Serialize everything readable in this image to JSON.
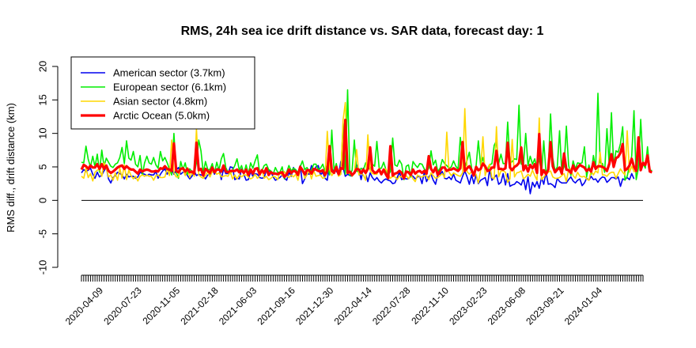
{
  "chart_data": {
    "type": "line",
    "title": "RMS, 24h sea ice drift distance vs. SAR data, forecast day: 1",
    "ylabel": "RMS diff., drift distance (km)",
    "xlabel": "",
    "ylim": [
      -10,
      20
    ],
    "yticks": [
      -10,
      -5,
      0,
      5,
      10,
      15,
      20
    ],
    "x_tick_labels": [
      "2020-04-09",
      "2020-07-23",
      "2020-11-05",
      "2021-02-18",
      "2021-06-03",
      "2021-09-16",
      "2021-12-30",
      "2022-04-14",
      "2022-07-28",
      "2022-11-10",
      "2023-02-23",
      "2023-06-08",
      "2023-09-21",
      "2024-01-04"
    ],
    "reference_line": 0,
    "grid": false,
    "legend_position": "top-left",
    "n_points": 250,
    "series": [
      {
        "name": "American sector (3.7km)",
        "color": "#0000ee",
        "width": 1.6,
        "values": [
          4.1,
          4.6,
          4.3,
          4.5,
          4.8,
          3.9,
          3.3,
          4.2,
          3.5,
          3.8,
          4.4,
          4.9,
          3.2,
          2.6,
          3.4,
          3.7,
          4.2,
          4.0,
          3.8,
          3.2,
          3.9,
          3.5,
          3.6,
          3.6,
          3.3,
          3.5,
          4.2,
          4.0,
          3.9,
          3.7,
          3.9,
          3.8,
          3.8,
          4.3,
          3.3,
          3.9,
          4.4,
          4.7,
          3.9,
          4.7,
          4.7,
          3.9,
          4.5,
          4.9,
          3.9,
          4.2,
          4.3,
          3.7,
          3.2,
          3.6,
          4.4,
          3.7,
          3.9,
          3.8,
          3.7,
          3.2,
          3.8,
          3.9,
          4.6,
          3.9,
          4.7,
          4.8,
          3.1,
          4.7,
          4.0,
          4.0,
          5.0,
          4.9,
          3.1,
          3.3,
          3.2,
          4.7,
          3.9,
          3.0,
          3.1,
          4.3,
          3.6,
          4.0,
          3.9,
          3.4,
          3.3,
          3.4,
          4.5,
          4.4,
          4.3,
          3.5,
          3.0,
          3.2,
          3.4,
          3.8,
          3.3,
          3.0,
          4.2,
          3.6,
          4.9,
          4.3,
          3.9,
          5.2,
          2.5,
          3.2,
          4.0,
          3.9,
          5.2,
          4.3,
          5.0,
          5.2,
          3.8,
          4.2,
          3.3,
          3.0,
          5.7,
          4.7,
          4.3,
          4.4,
          3.8,
          5.8,
          4.9,
          3.6,
          3.9,
          3.7,
          3.6,
          4.3,
          5.3,
          4.6,
          3.1,
          4.8,
          4.0,
          2.8,
          4.1,
          3.4,
          3.0,
          3.4,
          2.9,
          2.6,
          3.0,
          3.2,
          3.0,
          2.9,
          2.5,
          2.6,
          3.4,
          4.2,
          3.1,
          3.3,
          3.2,
          3.2,
          3.8,
          3.6,
          3.2,
          3.5,
          3.6,
          2.5,
          4.2,
          2.8,
          3.5,
          3.9,
          3.0,
          2.4,
          3.9,
          3.9,
          4.3,
          3.3,
          3.2,
          3.5,
          3.1,
          3.9,
          3.0,
          2.8,
          2.6,
          3.6,
          4.4,
          3.5,
          2.4,
          3.8,
          2.5,
          3.8,
          2.5,
          3.0,
          3.2,
          3.4,
          2.2,
          4.6,
          3.0,
          3.4,
          3.8,
          2.4,
          2.7,
          4.0,
          2.3,
          4.0,
          2.1,
          2.3,
          2.4,
          2.8,
          2.6,
          2.3,
          3.3,
          1.6,
          3.5,
          1.0,
          2.7,
          2.0,
          2.8,
          1.8,
          3.4,
          2.4,
          4.2,
          2.4,
          2.5,
          2.3,
          1.9,
          3.3,
          2.8,
          2.6,
          2.6,
          2.6,
          3.1,
          3.5,
          2.9,
          2.6,
          3.0,
          3.2,
          2.2,
          2.6,
          3.3,
          3.0,
          3.6,
          3.1,
          3.2,
          2.7,
          3.2,
          3.5,
          3.4,
          2.7,
          3.0,
          3.4,
          3.4,
          3.2,
          3.5,
          2.1,
          3.2,
          3.1,
          3.4,
          3.1,
          4.0,
          3.2
        ]
      },
      {
        "name": "European sector (6.1km)",
        "color": "#00ee00",
        "width": 1.6,
        "values": [
          5.7,
          5.6,
          8.1,
          6.1,
          5.0,
          6.6,
          5.0,
          6.9,
          4.2,
          7.5,
          5.1,
          6.3,
          5.7,
          5.1,
          4.9,
          5.4,
          5.6,
          6.4,
          7.9,
          5.5,
          8.9,
          6.3,
          6.0,
          7.3,
          5.4,
          5.0,
          6.7,
          3.8,
          5.6,
          6.6,
          5.6,
          5.4,
          6.4,
          5.3,
          4.8,
          7.3,
          5.9,
          6.4,
          5.6,
          4.7,
          3.8,
          4.6,
          4.2,
          3.3,
          5.8,
          4.6,
          5.6,
          3.9,
          4.7,
          4.3,
          4.0,
          5.6,
          5.0,
          7.4,
          4.1,
          5.8,
          4.6,
          4.6,
          5.5,
          4.1,
          5.7,
          4.5,
          6.2,
          7.0,
          4.9,
          4.2,
          4.0,
          4.5,
          5.2,
          6.2,
          4.5,
          5.2,
          4.0,
          5.3,
          3.9,
          5.6,
          4.8,
          5.9,
          6.8,
          4.1,
          4.4,
          5.2,
          5.4,
          4.6,
          4.4,
          3.9,
          4.9,
          4.2,
          4.2,
          5.0,
          3.2,
          4.2,
          5.2,
          4.4,
          4.8,
          4.6,
          4.1,
          5.0,
          5.9,
          4.6,
          4.9,
          4.3,
          4.5,
          5.4,
          5.4,
          4.6,
          4.8,
          5.4,
          4.3,
          5.2,
          3.8,
          4.8,
          4.4,
          5.5,
          3.9,
          3.9,
          3.9,
          3.9,
          3.8,
          3.7,
          4.5,
          6.2,
          4.4,
          4.2,
          4.8,
          4.5,
          5.6,
          5.0,
          4.6,
          5.4,
          5.1,
          4.8,
          4.8,
          4.8,
          5.7,
          4.6,
          3.8,
          4.3,
          4.2,
          5.3,
          5.1,
          6.0,
          5.4,
          3.1,
          5.1,
          5.3,
          3.5,
          5.8,
          5.3,
          4.9,
          5.5,
          5.4,
          4.7,
          4.3,
          4.8,
          6.5,
          5.3,
          6.0,
          4.3,
          4.8,
          6.1,
          5.5,
          5.2,
          4.8,
          5.0,
          5.9,
          5.1,
          4.7,
          6.1,
          6.5,
          4.9,
          6.0,
          5.8,
          4.8,
          3.7,
          5.2,
          4.4,
          5.2,
          6.4,
          4.7,
          4.5,
          5.3,
          5.5,
          6.3,
          8.9,
          5.5,
          6.9,
          5.5,
          5.5,
          5.4,
          5.5,
          5.8,
          6.2,
          6.1,
          8.3,
          5.4,
          5.4,
          6.6,
          5.2,
          6.6,
          5.4,
          6.2,
          4.6,
          6.3,
          3.9,
          4.3,
          4.0,
          4.6,
          4.9,
          6.3,
          4.4,
          5.0,
          5.4,
          4.2,
          5.0,
          5.5,
          5.3,
          3.7,
          5.9,
          4.7,
          5.6,
          5.5,
          5.6,
          5.2,
          3.5,
          5.3,
          3.9,
          6.7,
          4.8,
          5.9,
          5.6,
          5.5,
          4.2,
          4.6,
          5.4,
          4.7,
          5.1,
          7.4,
          7.2,
          8.5,
          6.3,
          3.0,
          3.6,
          5.2,
          6.6,
          4.8,
          3.1,
          4.9,
          3.4,
          5.5,
          4.8,
          8.0,
          4.4,
          4.5
        ],
        "peaks": {
          "41": 10.0,
          "52": 9.0,
          "111": 10.5,
          "118": 16.5,
          "116": 11.5,
          "121": 9.0,
          "131": 8.8,
          "138": 9.3,
          "155": 7.4,
          "168": 9.4,
          "172": 7.2,
          "176": 8.9,
          "183": 8.2,
          "189": 11.7,
          "194": 14.2,
          "197": 10.0,
          "205": 8.9,
          "208": 12.9,
          "212": 10.4,
          "215": 11.1,
          "223": 8.0,
          "229": 16.0,
          "233": 10.7,
          "235": 13.1,
          "240": 11.0,
          "245": 13.4,
          "248": 12.1
        }
      },
      {
        "name": "Asian sector (4.8km)",
        "color": "#ffd700",
        "width": 1.6,
        "values": [
          3.6,
          3.3,
          4.8,
          3.4,
          4.0,
          2.9,
          4.2,
          4.5,
          4.7,
          3.6,
          5.6,
          4.8,
          3.5,
          3.8,
          3.0,
          4.1,
          3.0,
          4.8,
          3.3,
          5.3,
          3.1,
          4.5,
          3.7,
          3.2,
          3.6,
          2.9,
          3.6,
          3.8,
          3.6,
          3.8,
          3.6,
          3.6,
          3.0,
          3.7,
          3.8,
          3.4,
          3.4,
          3.5,
          4.8,
          3.7,
          3.8,
          4.1,
          3.5,
          3.5,
          4.6,
          4.7,
          3.7,
          4.9,
          3.4,
          4.2,
          3.6,
          3.8,
          3.8,
          3.5,
          3.3,
          3.7,
          4.3,
          3.5,
          4.3,
          4.5,
          3.9,
          4.1,
          3.5,
          3.6,
          3.7,
          3.6,
          4.3,
          3.2,
          3.8,
          3.2,
          3.8,
          3.5,
          3.8,
          3.8,
          3.5,
          3.2,
          3.4,
          3.9,
          3.3,
          3.6,
          4.6,
          3.3,
          3.6,
          3.1,
          3.3,
          3.6,
          3.5,
          3.1,
          4.2,
          3.7,
          4.3,
          3.7,
          3.4,
          3.8,
          3.5,
          3.9,
          3.0,
          4.6,
          4.7,
          3.3,
          3.8,
          4.5,
          3.2,
          4.4,
          3.6,
          3.7,
          3.8,
          3.3,
          3.4,
          4.3,
          4.7,
          3.7,
          4.2,
          4.9,
          3.6,
          3.9,
          4.6,
          4.0,
          4.1,
          4.1,
          3.6,
          4.0,
          4.3,
          3.8,
          4.1,
          3.8,
          3.0,
          5.0,
          4.4,
          4.0,
          3.9,
          3.9,
          4.8,
          3.9,
          4.3,
          4.7,
          4.0,
          3.3,
          3.6,
          3.5,
          3.1,
          3.6,
          3.5,
          3.3,
          3.7,
          3.2,
          3.9,
          3.2,
          2.8,
          3.8,
          3.5,
          3.5,
          3.7,
          3.7,
          3.1,
          4.1,
          3.7,
          3.3,
          3.4,
          3.7,
          4.0,
          3.4,
          3.2,
          4.2,
          3.7,
          4.1,
          3.9,
          3.7,
          3.6,
          4.1,
          3.2,
          4.3,
          3.9,
          4.3,
          4.0,
          3.9,
          2.6,
          4.5,
          4.0,
          3.7,
          4.8,
          5.4,
          3.4,
          3.2,
          4.3,
          3.5,
          4.4,
          4.4,
          4.2,
          2.7,
          3.2,
          4.2,
          3.5,
          4.1,
          4.2,
          4.4,
          3.2,
          3.5,
          3.9,
          3.6,
          4.5,
          3.7,
          3.0,
          4.0,
          3.1,
          3.5,
          3.9,
          4.2,
          4.4,
          3.5,
          3.3,
          3.3,
          3.4,
          3.7,
          4.0,
          2.8,
          4.6,
          4.7,
          3.7,
          3.3,
          4.2,
          3.6,
          3.5,
          3.6,
          3.2,
          3.0,
          4.4,
          3.8,
          4.4,
          4.1,
          4.5,
          3.8,
          3.8,
          3.6,
          4.0,
          4.2,
          4.2,
          3.3,
          4.0,
          4.7,
          4.2,
          3.8,
          3.4,
          4.2,
          5.1,
          4.3,
          4.3
        ],
        "peaks": {
          "40": 9.0,
          "51": 10.7,
          "109": 10.3,
          "116": 12.0,
          "117": 14.6,
          "122": 7.6,
          "127": 9.8,
          "162": 10.2,
          "170": 13.7,
          "178": 9.5,
          "184": 11.0,
          "191": 9.1,
          "203": 12.3,
          "230": 7.2,
          "242": 10.4,
          "247": 9.1
        }
      },
      {
        "name": "Arctic Ocean (5.0km)",
        "color": "#ff0000",
        "width": 3.2,
        "values": [
          4.6,
          5.3,
          5.1,
          4.7,
          5.2,
          4.9,
          4.9,
          5.4,
          4.7,
          5.4,
          4.7,
          5.2,
          4.4,
          4.1,
          4.3,
          4.6,
          4.9,
          5.1,
          5.2,
          4.7,
          5.1,
          4.8,
          4.6,
          4.6,
          4.3,
          4.0,
          4.6,
          4.3,
          4.5,
          4.6,
          4.5,
          4.3,
          4.3,
          4.4,
          4.3,
          4.8,
          4.7,
          5.1,
          4.7,
          4.6,
          4.4,
          4.1,
          4.4,
          4.2,
          4.7,
          4.8,
          4.3,
          4.7,
          4.2,
          4.3,
          4.0,
          4.5,
          4.5,
          4.7,
          3.7,
          4.7,
          4.4,
          4.1,
          4.9,
          4.2,
          4.6,
          4.6,
          4.3,
          5.2,
          4.3,
          4.2,
          4.4,
          4.4,
          4.4,
          4.6,
          4.2,
          4.5,
          4.1,
          4.6,
          3.8,
          4.6,
          4.0,
          4.7,
          4.8,
          3.9,
          4.5,
          4.1,
          4.8,
          3.8,
          4.2,
          4.0,
          4.0,
          3.9,
          4.1,
          4.2,
          3.5,
          3.9,
          4.6,
          4.1,
          4.4,
          4.3,
          3.8,
          5.0,
          4.5,
          3.9,
          4.5,
          4.5,
          4.0,
          4.7,
          4.6,
          4.4,
          4.3,
          4.5,
          3.8,
          4.4,
          4.6,
          4.4,
          4.1,
          5.0,
          3.9,
          4.8,
          4.7,
          4.2,
          4.1,
          4.3,
          3.8,
          4.1,
          4.7,
          4.6,
          4.1,
          4.6,
          4.1,
          4.7,
          4.4,
          4.5,
          4.1,
          4.2,
          4.6,
          3.9,
          4.6,
          3.9,
          3.3,
          3.6,
          3.7,
          4.0,
          4.1,
          4.4,
          4.1,
          3.3,
          4.3,
          4.2,
          3.8,
          4.6,
          4.0,
          4.3,
          4.4,
          4.1,
          4.4,
          4.0,
          4.2,
          4.7,
          4.2,
          4.9,
          3.8,
          4.4,
          4.9,
          4.9,
          4.4,
          4.6,
          4.6,
          4.8,
          4.6,
          4.4,
          4.8,
          5.0,
          4.4,
          4.8,
          5.1,
          4.5,
          3.7,
          5.0,
          4.5,
          4.7,
          5.5,
          5.1,
          4.4,
          4.5,
          4.9,
          4.9,
          6.0,
          4.7,
          4.7,
          4.6,
          4.8,
          4.8,
          4.9,
          4.5,
          5.0,
          5.2,
          5.6,
          4.6,
          4.5,
          5.2,
          4.3,
          5.3,
          4.8,
          5.4,
          4.1,
          5.1,
          3.8,
          4.5,
          3.9,
          4.6,
          4.7,
          5.1,
          4.2,
          4.6,
          4.9,
          4.0,
          4.6,
          4.6,
          4.5,
          4.1,
          5.2,
          4.4,
          4.9,
          5.3,
          5.1,
          4.9,
          4.4,
          4.7,
          4.3,
          5.7,
          4.7,
          5.1,
          5.1,
          5.0,
          4.8,
          4.4,
          5.4,
          4.5,
          5.0,
          6.3,
          6.5,
          7.1,
          6.1,
          4.5,
          4.7,
          5.2,
          6.2,
          5.0,
          4.4,
          4.5,
          4.5,
          5.6,
          5.3,
          6.7,
          4.3,
          4.2
        ],
        "peaks": {
          "41": 8.5,
          "51": 8.6,
          "110": 8.1,
          "117": 12.0,
          "128": 7.9,
          "137": 8.1,
          "154": 6.6,
          "169": 8.7,
          "184": 7.4,
          "189": 8.6,
          "195": 7.9,
          "203": 9.9,
          "208": 8.7,
          "214": 7.0,
          "235": 6.9,
          "240": 8.4,
          "247": 9.4
        }
      }
    ]
  }
}
